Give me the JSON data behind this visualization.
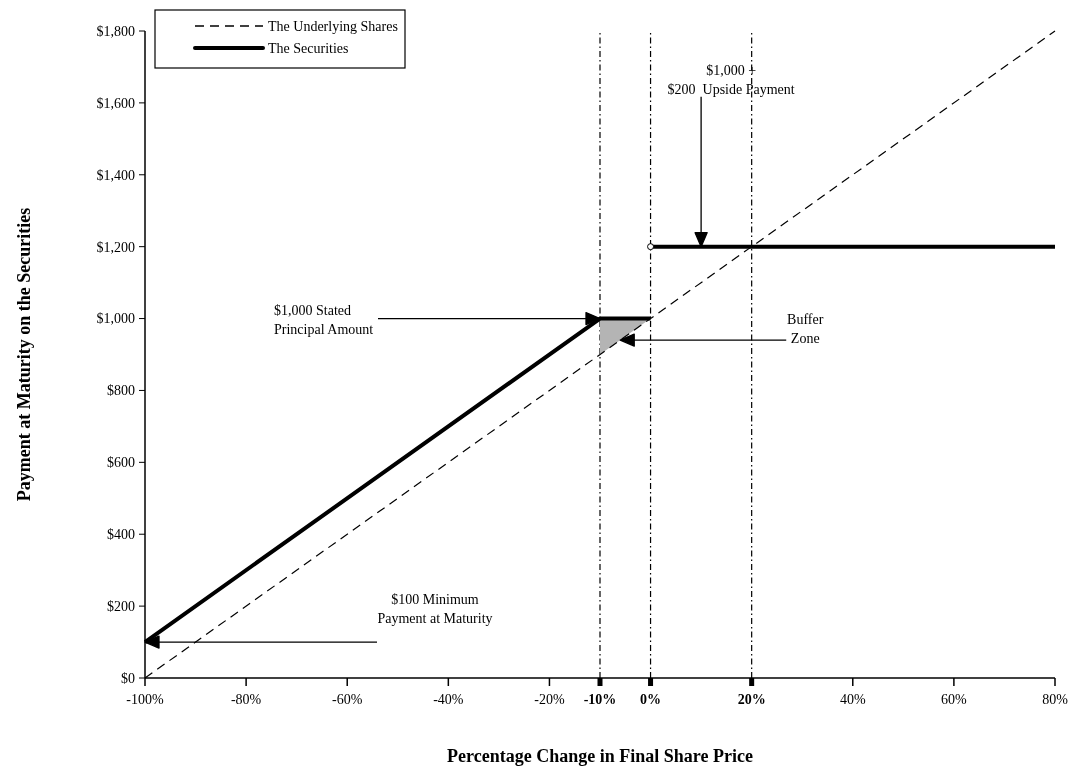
{
  "chart_data": {
    "type": "line",
    "xlabel": "Percentage Change in Final Share Price",
    "ylabel": "Payment at Maturity on the Securities",
    "xlim": [
      -100,
      80
    ],
    "ylim": [
      0,
      1800
    ],
    "xticks": [
      {
        "value": -100,
        "label": "-100%"
      },
      {
        "value": -80,
        "label": "-80%"
      },
      {
        "value": -60,
        "label": "-60%"
      },
      {
        "value": -40,
        "label": "-40%"
      },
      {
        "value": -20,
        "label": "-20%"
      },
      {
        "value": -10,
        "label": "-10%"
      },
      {
        "value": 0,
        "label": "0%"
      },
      {
        "value": 20,
        "label": "20%"
      },
      {
        "value": 40,
        "label": "40%"
      },
      {
        "value": 60,
        "label": "60%"
      },
      {
        "value": 80,
        "label": "80%"
      }
    ],
    "yticks": [
      {
        "value": 0,
        "label": "$0"
      },
      {
        "value": 200,
        "label": "$200"
      },
      {
        "value": 400,
        "label": "$400"
      },
      {
        "value": 600,
        "label": "$600"
      },
      {
        "value": 800,
        "label": "$800"
      },
      {
        "value": 1000,
        "label": "$1,000"
      },
      {
        "value": 1200,
        "label": "$1,200"
      },
      {
        "value": 1400,
        "label": "$1,400"
      },
      {
        "value": 1600,
        "label": "$1,600"
      },
      {
        "value": 1800,
        "label": "$1,800"
      }
    ],
    "series": [
      {
        "name": "The Underlying Shares",
        "color": "#000000",
        "line_style": "dashed",
        "x": [
          -100,
          80
        ],
        "values": [
          0,
          1800
        ]
      },
      {
        "name": "The Securities",
        "color": "#000000",
        "line_style": "solid",
        "x": [
          -100,
          -10,
          0
        ],
        "values": [
          100,
          1000,
          1000
        ]
      },
      {
        "color": "#000000",
        "line_style": "solid",
        "x": [
          0,
          80
        ],
        "values": [
          1200,
          1200
        ]
      },
      {
        "type": "area",
        "color": "#b4b4b4",
        "x": [
          -10,
          0
        ],
        "values": [
          1000,
          1000
        ]
      }
    ],
    "ref_lines": [
      {
        "axis": "x",
        "value": -10,
        "line_style": "dotted"
      },
      {
        "axis": "x",
        "value": 0,
        "line_style": "dotted"
      },
      {
        "axis": "x",
        "value": 20,
        "line_style": "dotted"
      }
    ],
    "annotations": [
      {
        "text": "$1,000 +\n$200  Upside Payment",
        "x": 10,
        "y": 1200
      },
      {
        "text": "$1,000 Stated\nPrincipal Amount",
        "x": -10,
        "y": 1000
      },
      {
        "text": "Buffer\nZone",
        "x": -6,
        "y": 940
      },
      {
        "text": "$100 Minimum\nPayment at Maturity",
        "x": -100,
        "y": 100
      }
    ],
    "legend": "top left",
    "grid": false
  }
}
